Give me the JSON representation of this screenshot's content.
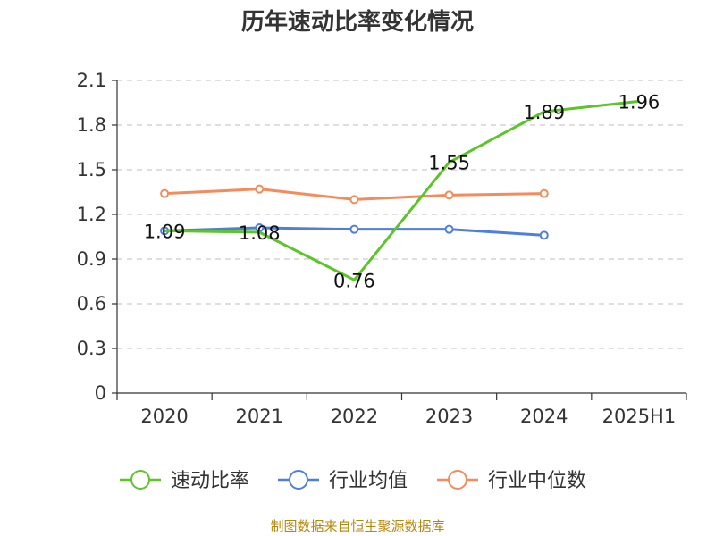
{
  "title": "历年速动比率变化情况",
  "source": "制图数据来自恒生聚源数据库",
  "chart_data": {
    "type": "line",
    "title": "历年速动比率变化情况",
    "categories": [
      "2020",
      "2021",
      "2022",
      "2023",
      "2024",
      "2025H1"
    ],
    "yticks": [
      "0",
      "0.3",
      "0.6",
      "0.9",
      "1.2",
      "1.5",
      "1.8",
      "2.1"
    ],
    "ylim": [
      0,
      2.1
    ],
    "grid": true,
    "legend_position": "bottom",
    "series": [
      {
        "name": "速动比率",
        "color": "#5cc52a",
        "values": [
          1.09,
          1.08,
          0.76,
          1.55,
          1.89,
          1.96
        ],
        "labels": [
          "1.09",
          "1.08",
          "0.76",
          "1.55",
          "1.89",
          "1.96"
        ]
      },
      {
        "name": "行业均值",
        "color": "#4f7fdc",
        "values": [
          1.09,
          1.11,
          1.1,
          1.1,
          1.06,
          null
        ]
      },
      {
        "name": "行业中位数",
        "color": "#f48b5b",
        "values": [
          1.34,
          1.37,
          1.3,
          1.33,
          1.34,
          null
        ]
      }
    ]
  }
}
